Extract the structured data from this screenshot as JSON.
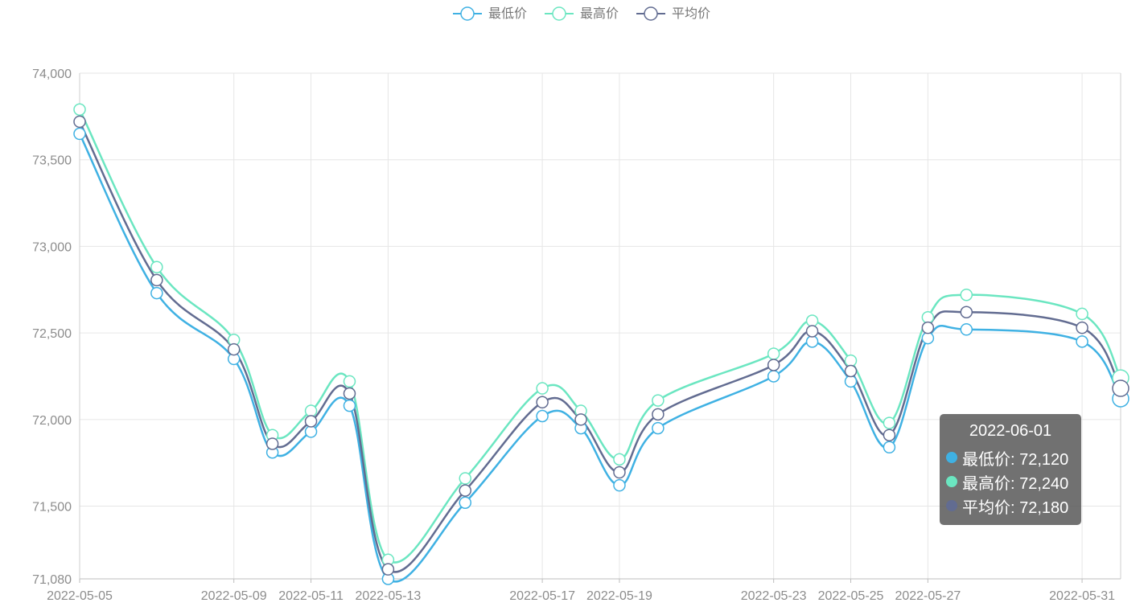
{
  "chart_data": {
    "type": "line",
    "smooth": true,
    "categories": [
      "2022-05-05",
      "2022-05-07",
      "2022-05-09",
      "2022-05-10",
      "2022-05-11",
      "2022-05-12",
      "2022-05-13",
      "2022-05-15",
      "2022-05-17",
      "2022-05-18",
      "2022-05-19",
      "2022-05-20",
      "2022-05-23",
      "2022-05-24",
      "2022-05-25",
      "2022-05-26",
      "2022-05-27",
      "2022-05-28",
      "2022-05-31",
      "2022-06-01"
    ],
    "x_tick_labels": [
      "2022-05-05",
      "2022-05-09",
      "2022-05-11",
      "2022-05-13",
      "2022-05-17",
      "2022-05-19",
      "2022-05-23",
      "2022-05-25",
      "2022-05-27",
      "2022-05-31"
    ],
    "series": [
      {
        "name": "最低价",
        "color": "#3fb1e3",
        "values": [
          73650,
          72730,
          72350,
          71810,
          71930,
          72080,
          71080,
          71520,
          72020,
          71950,
          71620,
          71950,
          72250,
          72450,
          72220,
          71840,
          72470,
          72520,
          72450,
          72120
        ]
      },
      {
        "name": "最高价",
        "color": "#6be6c1",
        "values": [
          73790,
          72880,
          72460,
          71910,
          72050,
          72220,
          71190,
          71660,
          72180,
          72050,
          71770,
          72110,
          72380,
          72570,
          72340,
          71980,
          72590,
          72720,
          72610,
          72240
        ]
      },
      {
        "name": "平均价",
        "color": "#626c91",
        "values": [
          73720,
          72805,
          72405,
          71860,
          71990,
          72150,
          71135,
          71590,
          72100,
          72000,
          71695,
          72030,
          72315,
          72510,
          72280,
          71910,
          72530,
          72620,
          72530,
          72180
        ]
      }
    ],
    "y_ticks": [
      "74,000",
      "73,500",
      "73,000",
      "72,500",
      "72,000",
      "71,500",
      "71,080"
    ],
    "ylim": [
      71080,
      74000
    ],
    "grid": true,
    "legend_position": "top-center",
    "xlabel": "",
    "ylabel": "",
    "title": ""
  },
  "tooltip": {
    "title": "2022-06-01",
    "rows": [
      {
        "text": "最低价: 72,120",
        "color": "#3fb1e3"
      },
      {
        "text": "最高价: 72,240",
        "color": "#6be6c1"
      },
      {
        "text": "平均价: 72,180",
        "color": "#626c91"
      }
    ]
  }
}
